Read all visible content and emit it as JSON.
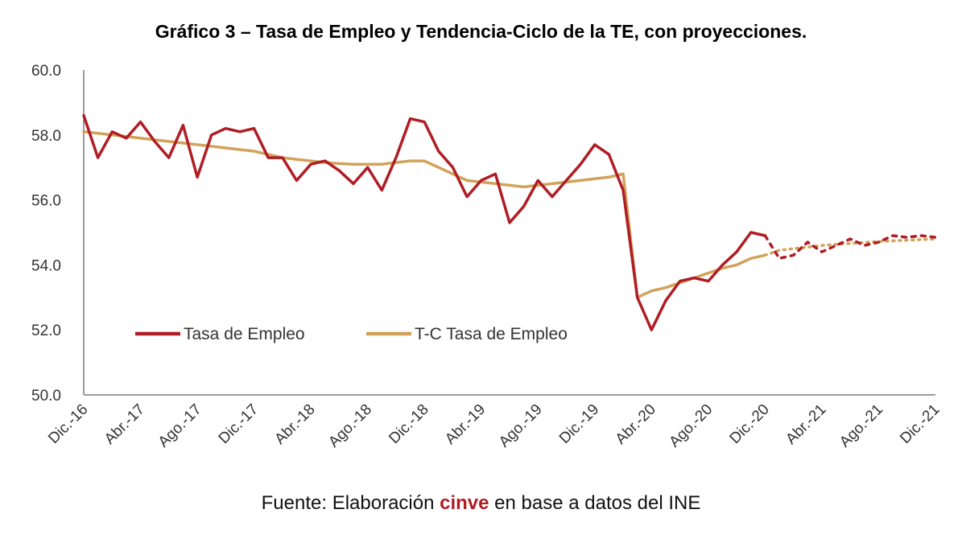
{
  "title": "Gráfico 3 – Tasa de Empleo y Tendencia-Ciclo de la TE, con proyecciones.",
  "footer": {
    "prefix": "Fuente: Elaboración ",
    "brand": "cinve",
    "suffix": " en base a datos del INE"
  },
  "colors": {
    "te": "#b01d24",
    "tc": "#d2a25a",
    "axis": "#7a7a7a",
    "brand": "#b01d24"
  },
  "chart_data": {
    "type": "line",
    "title": "Gráfico 3 – Tasa de Empleo y Tendencia-Ciclo de la TE, con proyecciones.",
    "x_tick_labels": [
      "Dic.-16",
      "Abr.-17",
      "Ago.-17",
      "Dic.-17",
      "Abr.-18",
      "Ago.-18",
      "Dic.-18",
      "Abr.-19",
      "Ago.-19",
      "Dic.-19",
      "Abr.-20",
      "Ago.-20",
      "Dic.-20",
      "Abr.-21",
      "Ago.-21",
      "Dic.-21"
    ],
    "y_tick_labels": [
      "50.0",
      "52.0",
      "54.0",
      "56.0",
      "58.0",
      "60.0"
    ],
    "ylim": [
      50,
      60
    ],
    "legend_position": "lower-left",
    "grid": false,
    "series": [
      {
        "name": "Tasa de Empleo",
        "color": "#b01d24",
        "style": "solid",
        "values": [
          58.6,
          57.3,
          58.1,
          57.9,
          58.4,
          57.8,
          57.3,
          58.3,
          56.7,
          58.0,
          58.2,
          58.1,
          58.2,
          57.3,
          57.3,
          56.6,
          57.1,
          57.2,
          56.9,
          56.5,
          57.0,
          56.3,
          57.3,
          58.5,
          58.4,
          57.5,
          57.0,
          56.1,
          56.6,
          56.8,
          55.3,
          55.8,
          56.6,
          56.1,
          56.6,
          57.1,
          57.7,
          57.4,
          56.3,
          53.0,
          52.0,
          52.9,
          53.5,
          53.6,
          53.5,
          54.0,
          54.4,
          55.0,
          54.9
        ]
      },
      {
        "name": "T-C Tasa de Empleo",
        "color": "#d2a25a",
        "style": "solid",
        "values": [
          58.1,
          58.05,
          58.0,
          57.95,
          57.9,
          57.85,
          57.8,
          57.75,
          57.7,
          57.65,
          57.6,
          57.55,
          57.5,
          57.4,
          57.3,
          57.25,
          57.2,
          57.15,
          57.12,
          57.1,
          57.1,
          57.1,
          57.15,
          57.2,
          57.2,
          57.0,
          56.8,
          56.6,
          56.55,
          56.5,
          56.45,
          56.4,
          56.45,
          56.5,
          56.55,
          56.6,
          56.65,
          56.7,
          56.8,
          53.0,
          53.2,
          53.3,
          53.45,
          53.6,
          53.75,
          53.9,
          54.0,
          54.2,
          54.3
        ]
      },
      {
        "name": "Proyección Tasa de Empleo",
        "color": "#b01d24",
        "style": "dashed",
        "start_index": 48,
        "values": [
          54.9,
          54.2,
          54.3,
          54.7,
          54.4,
          54.6,
          54.8,
          54.6,
          54.7,
          54.9,
          54.85,
          54.9,
          54.85
        ]
      },
      {
        "name": "Proyección T-C",
        "color": "#d2a25a",
        "style": "dotted",
        "start_index": 48,
        "values": [
          54.3,
          54.45,
          54.5,
          54.55,
          54.6,
          54.63,
          54.66,
          54.69,
          54.72,
          54.74,
          54.76,
          54.78,
          54.8
        ]
      }
    ],
    "legend": [
      {
        "label": "Tasa de Empleo",
        "color": "#b01d24"
      },
      {
        "label": "T-C Tasa de Empleo",
        "color": "#d2a25a"
      }
    ]
  }
}
